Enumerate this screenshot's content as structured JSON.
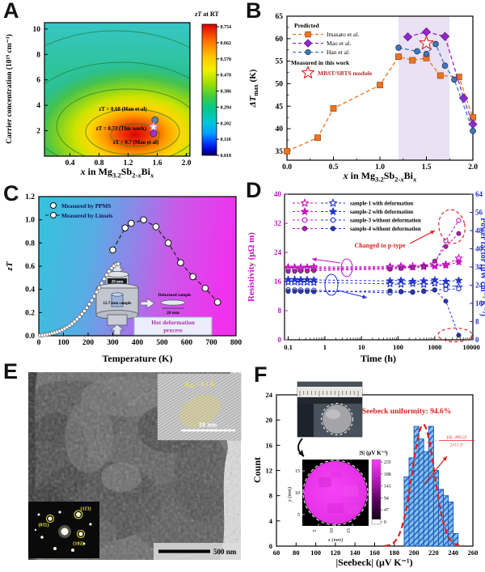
{
  "chart_data": [
    {
      "id": "A",
      "letter": "A",
      "type": "heatmap",
      "colorbar_title_parts": [
        [
          "zT",
          "i"
        ],
        [
          " at RT",
          ""
        ]
      ],
      "colorbar_ticks": [
        "0.754",
        "0.662",
        "0.570",
        "0.478",
        "0.386",
        "0.294",
        "0.202",
        "0.110",
        "0.018"
      ],
      "xlabel_parts": [
        [
          "x",
          "i"
        ],
        [
          " in Mg",
          ""
        ],
        [
          "3.2",
          "s"
        ],
        [
          "Sb",
          ""
        ],
        [
          "2-",
          "s"
        ],
        [
          "x",
          "si"
        ],
        [
          "Bi",
          ""
        ],
        [
          "x",
          "si"
        ]
      ],
      "ylabel": "Carrier concentration (10¹⁹ cm⁻³)",
      "xticks": [
        "0.4",
        "0.8",
        "1.2",
        "1.6",
        "2.0"
      ],
      "yticks": [
        "2",
        "4",
        "6",
        "8",
        "10"
      ],
      "xlim": [
        0.05,
        2.05
      ],
      "ylim": [
        0,
        10.5
      ],
      "hotspot": {
        "x": 1.3,
        "y": 1.7
      },
      "annotations": [
        {
          "text": "zT = 0.68 (Han et al)",
          "x": 1.57,
          "y": 2.85,
          "marker": "circle",
          "color": "#5b84b1"
        },
        {
          "text": "zT = 0.73 (This work)",
          "x": 1.55,
          "y": 2.3,
          "marker": "star",
          "color": "#c77bc7"
        },
        {
          "text": "zT = 0.7 (Mao et al)",
          "x": 1.55,
          "y": 1.78,
          "marker": "circle",
          "color": "#a62ce2"
        }
      ]
    },
    {
      "id": "B",
      "letter": "B",
      "type": "line",
      "ylabel_parts": [
        [
          "ΔT",
          "i"
        ],
        [
          "max",
          "s"
        ],
        [
          " (K)",
          ""
        ]
      ],
      "xlabel_parts": [
        [
          "x",
          "i"
        ],
        [
          " in Mg",
          ""
        ],
        [
          "3.2",
          "s"
        ],
        [
          "Sb",
          ""
        ],
        [
          "2-",
          "s"
        ],
        [
          "x",
          "si"
        ],
        [
          "Bi",
          ""
        ],
        [
          "x",
          "si"
        ]
      ],
      "xlim": [
        0,
        2
      ],
      "ylim": [
        33,
        65
      ],
      "xticks": [
        "0.0",
        "0.5",
        "1.0",
        "1.5",
        "2.0"
      ],
      "yticks": [
        35,
        40,
        45,
        50,
        55,
        60,
        65
      ],
      "band": [
        1.2,
        1.75
      ],
      "band_color": "#e6dcf2",
      "legend_header1": "Predicted",
      "legend_header2": "Measured in this work",
      "series": [
        {
          "name": "Imasato et al.",
          "color": "#e87424",
          "marker": "square",
          "x": [
            0,
            0.33,
            0.5,
            1.0,
            1.2,
            1.35,
            1.5,
            1.65,
            1.85,
            2.0
          ],
          "y": [
            35,
            38,
            44.5,
            49.7,
            56,
            55.2,
            55.7,
            51.8,
            51.5,
            42.5
          ]
        },
        {
          "name": "Mao et al.",
          "color": "#9227cc",
          "marker": "diamond",
          "x": [
            1.3,
            1.5,
            1.7,
            1.9,
            2.0
          ],
          "y": [
            60.4,
            61.5,
            60.5,
            46.8,
            41
          ]
        },
        {
          "name": "Han et al.",
          "color": "#3a78c8",
          "marker": "circle",
          "x": [
            1.2,
            1.4,
            1.5,
            1.6,
            1.7,
            1.8,
            2.0
          ],
          "y": [
            58,
            57.2,
            56.6,
            58.8,
            54,
            50.9,
            39.5
          ]
        }
      ],
      "measured_point": {
        "label": "MBST/SBTS module",
        "x": 1.5,
        "y": 59,
        "color": "#e02020",
        "label_color": "#b03030"
      }
    },
    {
      "id": "C",
      "letter": "C",
      "type": "line",
      "ylabel_parts": [
        [
          "zT",
          "i"
        ]
      ],
      "xlabel": "Temperature (K)",
      "xlim": [
        0,
        800
      ],
      "ylim": [
        0,
        1.2
      ],
      "xticks": [
        0,
        100,
        200,
        300,
        400,
        500,
        600,
        700,
        800
      ],
      "yticks": [
        "0.0",
        "0.2",
        "0.4",
        "0.6",
        "0.8",
        "1.0",
        "1.2"
      ],
      "legend": [
        "Measured by PPMS",
        "Measured by Linseis"
      ],
      "legend_color": "#14145a",
      "series": [
        {
          "name": "Measured by PPMS",
          "x": [
            5,
            15,
            25,
            35,
            45,
            55,
            65,
            75,
            85,
            95,
            105,
            115,
            125,
            135,
            145,
            155,
            165,
            175,
            185,
            195,
            205,
            215,
            225,
            235,
            245,
            255,
            265,
            275,
            285,
            295,
            305,
            315,
            322
          ],
          "y": [
            0.003,
            0.005,
            0.008,
            0.012,
            0.016,
            0.021,
            0.027,
            0.034,
            0.042,
            0.051,
            0.062,
            0.074,
            0.088,
            0.104,
            0.122,
            0.142,
            0.164,
            0.188,
            0.214,
            0.242,
            0.272,
            0.305,
            0.34,
            0.377,
            0.415,
            0.453,
            0.49,
            0.525,
            0.556,
            0.583,
            0.603,
            0.616,
            0.62
          ]
        },
        {
          "name": "Measured by Linseis",
          "x": [
            300,
            350,
            375,
            425,
            475,
            525,
            575,
            625,
            675,
            725
          ],
          "y": [
            0.74,
            0.93,
            0.97,
            1.0,
            0.94,
            0.8,
            0.63,
            0.51,
            0.41,
            0.29
          ]
        }
      ],
      "inset": {
        "press_top_label": "20 mm",
        "sample_label": "12.7-mm sample",
        "deformed_label": "Deformed sample",
        "deformed_scale": "20 mm",
        "process_line1": "Hot deformation",
        "process_line2": "process"
      }
    },
    {
      "id": "D",
      "letter": "D",
      "type": "line",
      "xscale": "log",
      "xlabel": "Time (h)",
      "ylabel_left": "Resistivity (μΩ m)",
      "ylabel_right": "Power factor (μW cm⁻¹ K⁻²)",
      "color_left": "#c411c4",
      "color_right": "#2233cc",
      "xlim": [
        0.08,
        11000
      ],
      "xticks": [
        "0.1",
        "1",
        "10",
        "100",
        "1000",
        "10000"
      ],
      "ylim_left": [
        0,
        40
      ],
      "yticks_left": [
        0,
        8,
        16,
        24,
        32,
        40
      ],
      "ylim_right": [
        0,
        64
      ],
      "yticks_right": [
        0,
        8,
        16,
        24,
        32,
        40,
        48,
        56,
        64
      ],
      "legend": [
        "sample-1 with deformation",
        "sample-2 with deformation",
        "sample-3 without deformation",
        "sample-4 without deformation"
      ],
      "markers": [
        "star-open",
        "star",
        "circle-open",
        "circle"
      ],
      "annotation": {
        "text": "Changed to p-type",
        "color": "#e02020"
      },
      "time": [
        0.1,
        0.15,
        0.22,
        0.33,
        0.5,
        60,
        120,
        250,
        500,
        1000,
        2000,
        4500
      ],
      "resistivity": [
        [
          19.9,
          19.9,
          19.9,
          19.9,
          20.0,
          20.1,
          20.2,
          20.2,
          20.3,
          20.5,
          20.7,
          22.4
        ],
        [
          19.6,
          19.6,
          19.6,
          19.7,
          19.7,
          19.8,
          19.9,
          19.9,
          20.0,
          20.2,
          20.4,
          21.3
        ],
        [
          19.2,
          19.2,
          19.2,
          19.3,
          19.3,
          19.7,
          19.9,
          20.1,
          20.3,
          21.0,
          27.2,
          32.8
        ],
        [
          18.8,
          18.8,
          18.9,
          18.9,
          19.0,
          19.4,
          19.6,
          19.8,
          20.1,
          21.6,
          25.6,
          29.2
        ]
      ],
      "power_factor": [
        [
          25.4,
          25.4,
          25.3,
          25.3,
          25.2,
          24.6,
          24.4,
          24.7,
          24.3,
          24.9,
          24.1,
          23.2
        ],
        [
          26.5,
          26.5,
          26.4,
          26.4,
          26.3,
          25.9,
          26.1,
          25.7,
          25.9,
          26.3,
          25.7,
          26.1
        ],
        [
          22.0,
          21.9,
          21.9,
          21.8,
          21.8,
          20.6,
          21.1,
          20.9,
          21.3,
          21.9,
          22.1,
          22.4
        ],
        [
          21.3,
          21.3,
          21.2,
          21.2,
          21.1,
          21.5,
          21.3,
          21.1,
          21.5,
          21.9,
          17.0,
          2.0
        ]
      ]
    },
    {
      "id": "E",
      "letter": "E",
      "type": "image",
      "scalebar": "500 nm",
      "hrtem": {
        "label_parts": [
          [
            "d",
            "i"
          ],
          [
            "11̄3",
            "s"
          ],
          [
            " = 2.1 Å",
            ""
          ]
        ],
        "scalebar": "10 nm"
      },
      "saed": {
        "spots": [
          "(01̄1)",
          "(11̄3)",
          "(102)"
        ]
      }
    },
    {
      "id": "F",
      "letter": "F",
      "type": "bar",
      "ylabel": "Count",
      "xlabel": "|Seebeck| (μV K⁻¹)",
      "xlim": [
        60,
        260
      ],
      "ylim": [
        0,
        24
      ],
      "xticks": [
        60,
        80,
        100,
        120,
        140,
        160,
        180,
        200,
        220,
        240,
        260
      ],
      "yticks": [
        0,
        4,
        8,
        12,
        16,
        20,
        24
      ],
      "bin_start": 190,
      "bin_width": 5,
      "counts": [
        11,
        14,
        19,
        17,
        15,
        19,
        12,
        9,
        8,
        7,
        2
      ],
      "bar_color": "#85c1f0",
      "bar_edge": "#1956b8",
      "gauss": {
        "mu": 209.5,
        "sigma": 11.3,
        "amp": 19.3,
        "color": "#e02020"
      },
      "annotation": {
        "text": "Seebeck uniformity: 94.6%",
        "color": "#e02020"
      },
      "formula": {
        "prefix": "~e",
        "minus": "−",
        "numerator": "(|S|−209.5)²",
        "denominator": "2×11.3²"
      },
      "inset_map": {
        "title": "|S| (μV K⁻¹)",
        "cb_ticks": [
          235,
          188,
          141,
          94,
          47,
          0
        ],
        "xlabel": "x (mm)",
        "ylabel": "y (mm)",
        "xticks": [
          5,
          10,
          15
        ],
        "yticks": [
          5,
          10,
          15
        ]
      }
    }
  ]
}
